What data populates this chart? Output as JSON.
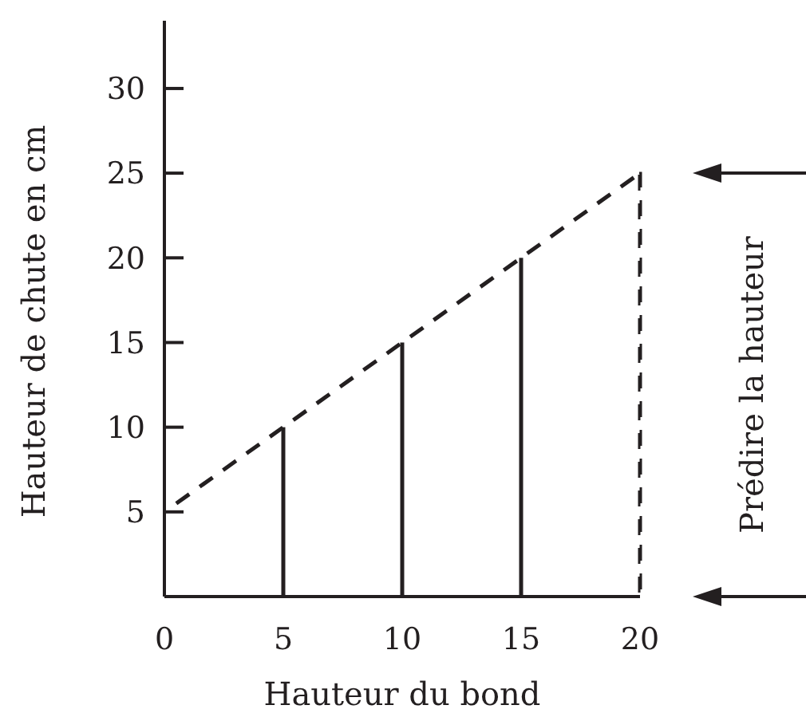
{
  "chart_data": {
    "type": "bar",
    "xlabel": "Hauteur du bond",
    "ylabel": "Hauteur de chute en cm",
    "xlim": [
      0,
      20
    ],
    "ylim": [
      0,
      34
    ],
    "xticks": [
      0,
      5,
      10,
      15,
      20
    ],
    "yticks": [
      5,
      10,
      15,
      20,
      25,
      30
    ],
    "series": [
      {
        "type": "line",
        "color": "#231f20",
        "line_style": "dashed",
        "x": [
          0.5,
          20
        ],
        "values": [
          5.5,
          25
        ]
      },
      {
        "color": "#231f20",
        "line_style": "solid",
        "x": [
          5,
          10,
          15
        ],
        "values": [
          10,
          15,
          20
        ]
      },
      {
        "color": "#231f20",
        "line_style": "dashed",
        "x": [
          20
        ],
        "values": [
          25
        ]
      }
    ],
    "annotations": [
      "Prédire la hauteur"
    ]
  }
}
